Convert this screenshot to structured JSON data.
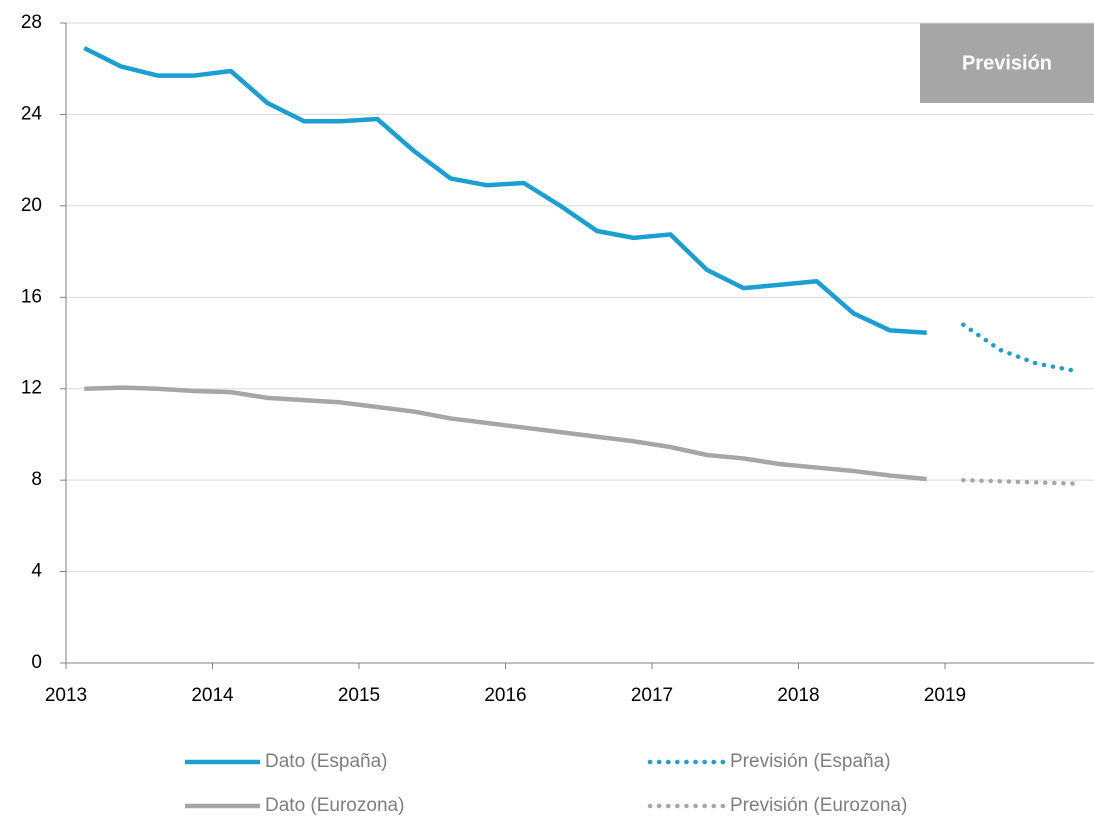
{
  "chart_data": {
    "type": "line",
    "annotation": "Previsión",
    "xlim": [
      2013,
      2020
    ],
    "xticks": [
      2013,
      2014,
      2015,
      2016,
      2017,
      2018,
      2019
    ],
    "ylim": [
      0,
      28
    ],
    "yticks": [
      0,
      4,
      8,
      12,
      16,
      20,
      24,
      28
    ],
    "grid": true,
    "legend": "bottom",
    "series": [
      {
        "name": "Dato (España)",
        "color": "#1a9fd3",
        "style": "solid",
        "x": [
          2013.125,
          2013.375,
          2013.625,
          2013.875,
          2014.125,
          2014.375,
          2014.625,
          2014.875,
          2015.125,
          2015.375,
          2015.625,
          2015.875,
          2016.125,
          2016.375,
          2016.625,
          2016.875,
          2017.125,
          2017.375,
          2017.625,
          2017.875,
          2018.125,
          2018.375,
          2018.625,
          2018.875
        ],
        "values": [
          26.9,
          26.1,
          25.7,
          25.7,
          25.9,
          24.5,
          23.7,
          23.7,
          23.8,
          22.4,
          21.2,
          20.9,
          21.0,
          20.0,
          18.9,
          18.6,
          18.75,
          17.2,
          16.4,
          16.55,
          16.7,
          15.3,
          14.55,
          14.45
        ]
      },
      {
        "name": "Previsión (España)",
        "color": "#1a9fd3",
        "style": "dotted",
        "x": [
          2019.125,
          2019.375,
          2019.625,
          2019.875
        ],
        "values": [
          14.8,
          13.7,
          13.1,
          12.8
        ]
      },
      {
        "name": "Dato (Eurozona)",
        "color": "#a6a6a6",
        "style": "solid",
        "x": [
          2013.125,
          2013.375,
          2013.625,
          2013.875,
          2014.125,
          2014.375,
          2014.625,
          2014.875,
          2015.125,
          2015.375,
          2015.625,
          2015.875,
          2016.125,
          2016.375,
          2016.625,
          2016.875,
          2017.125,
          2017.375,
          2017.625,
          2017.875,
          2018.125,
          2018.375,
          2018.625,
          2018.875
        ],
        "values": [
          12.0,
          12.05,
          12.0,
          11.9,
          11.85,
          11.6,
          11.5,
          11.4,
          11.2,
          11.0,
          10.7,
          10.5,
          10.3,
          10.1,
          9.9,
          9.7,
          9.45,
          9.1,
          8.95,
          8.7,
          8.55,
          8.4,
          8.2,
          8.05
        ]
      },
      {
        "name": "Previsión (Eurozona)",
        "color": "#a6a6a6",
        "style": "dotted",
        "x": [
          2019.125,
          2019.375,
          2019.625,
          2019.875
        ],
        "values": [
          8.0,
          7.95,
          7.9,
          7.85
        ]
      }
    ]
  }
}
